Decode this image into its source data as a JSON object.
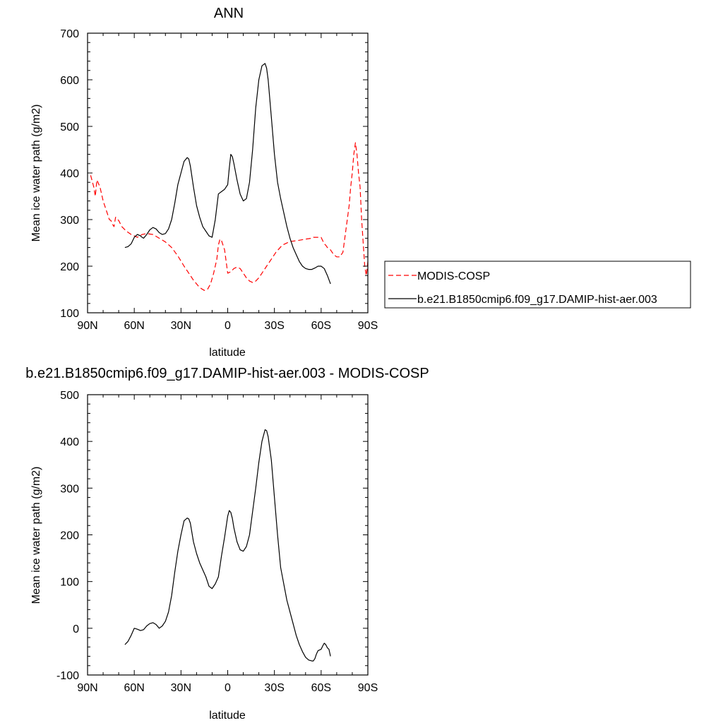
{
  "chart_data": [
    {
      "type": "line",
      "title": "ANN",
      "xlabel": "latitude",
      "ylabel": "Mean ice water path (g/m2)",
      "xlim": [
        90,
        -90
      ],
      "ylim": [
        100,
        700
      ],
      "x_ticks": [
        {
          "value": 90,
          "label": "90N"
        },
        {
          "value": 60,
          "label": "60N"
        },
        {
          "value": 30,
          "label": "30N"
        },
        {
          "value": 0,
          "label": "0"
        },
        {
          "value": -30,
          "label": "30S"
        },
        {
          "value": -60,
          "label": "60S"
        },
        {
          "value": -90,
          "label": "90S"
        }
      ],
      "y_ticks": [
        100,
        200,
        300,
        400,
        500,
        600,
        700
      ],
      "grid": false,
      "legend": "right",
      "series": [
        {
          "name": "MODIS-COSP",
          "color": "#ff0000",
          "dash": "dashed",
          "x": [
            88,
            86,
            85,
            84,
            82,
            80,
            78,
            76,
            75,
            74,
            73,
            72,
            70,
            68,
            65,
            62,
            58,
            55,
            52,
            48,
            44,
            40,
            36,
            32,
            28,
            25,
            22,
            19,
            17,
            15,
            13,
            11,
            9,
            7,
            6,
            5,
            4,
            2,
            1,
            0,
            -2,
            -4,
            -6,
            -8,
            -10,
            -12,
            -14,
            -16,
            -18,
            -20,
            -22,
            -25,
            -28,
            -31,
            -35,
            -40,
            -45,
            -50,
            -54,
            -55,
            -57,
            -58,
            -60,
            -61,
            -62,
            -63,
            -64,
            -66,
            -68,
            -70,
            -72,
            -74,
            -76,
            -78,
            -79,
            -80,
            -81,
            -82,
            -83,
            -84,
            -85,
            -86,
            -87,
            -88,
            -89,
            -90
          ],
          "y": [
            395,
            370,
            350,
            385,
            370,
            340,
            320,
            300,
            298,
            290,
            285,
            305,
            298,
            285,
            275,
            268,
            262,
            268,
            270,
            268,
            260,
            252,
            240,
            222,
            200,
            185,
            170,
            158,
            152,
            148,
            150,
            162,
            185,
            215,
            245,
            258,
            255,
            235,
            210,
            185,
            188,
            195,
            198,
            195,
            185,
            175,
            168,
            165,
            168,
            175,
            185,
            200,
            215,
            230,
            245,
            253,
            255,
            258,
            260,
            262,
            262,
            262,
            262,
            255,
            248,
            245,
            240,
            235,
            225,
            220,
            220,
            230,
            280,
            330,
            370,
            400,
            440,
            465,
            440,
            400,
            370,
            300,
            250,
            200,
            180,
            210
          ]
        },
        {
          "name": "b.e21.B1850cmip6.f09_g17.DAMIP-hist-aer.003",
          "color": "#000000",
          "dash": "solid",
          "x": [
            66,
            64,
            62,
            60,
            58,
            56,
            55,
            54,
            52,
            50,
            48,
            46,
            44,
            42,
            40,
            38,
            36,
            34,
            32,
            30,
            28,
            26,
            25,
            24,
            22,
            20,
            18,
            16,
            14,
            12,
            10,
            8,
            6,
            4,
            2,
            0,
            -1,
            -2,
            -3,
            -4,
            -6,
            -8,
            -10,
            -12,
            -14,
            -16,
            -18,
            -20,
            -22,
            -24,
            -25,
            -26,
            -28,
            -30,
            -32,
            -34,
            -36,
            -38,
            -40,
            -42,
            -44,
            -46,
            -48,
            -50,
            -52,
            -54,
            -56,
            -58,
            -60,
            -62,
            -64,
            -66
          ],
          "y": [
            240,
            242,
            248,
            262,
            268,
            265,
            262,
            260,
            268,
            278,
            283,
            280,
            272,
            268,
            270,
            280,
            300,
            335,
            375,
            400,
            425,
            433,
            430,
            415,
            370,
            330,
            305,
            285,
            275,
            265,
            262,
            300,
            355,
            360,
            365,
            375,
            410,
            440,
            435,
            420,
            385,
            355,
            340,
            345,
            380,
            450,
            540,
            600,
            630,
            635,
            625,
            600,
            520,
            440,
            380,
            345,
            315,
            285,
            260,
            240,
            225,
            210,
            200,
            195,
            193,
            193,
            196,
            200,
            200,
            195,
            180,
            162
          ]
        }
      ]
    },
    {
      "type": "line",
      "title": "b.e21.B1850cmip6.f09_g17.DAMIP-hist-aer.003 - MODIS-COSP",
      "xlabel": "latitude",
      "ylabel": "Mean ice water path (g/m2)",
      "xlim": [
        90,
        -90
      ],
      "ylim": [
        -100,
        500
      ],
      "x_ticks": [
        {
          "value": 90,
          "label": "90N"
        },
        {
          "value": 60,
          "label": "60N"
        },
        {
          "value": 30,
          "label": "30N"
        },
        {
          "value": 0,
          "label": "0"
        },
        {
          "value": -30,
          "label": "30S"
        },
        {
          "value": -60,
          "label": "60S"
        },
        {
          "value": -90,
          "label": "90S"
        }
      ],
      "y_ticks": [
        -100,
        0,
        100,
        200,
        300,
        400,
        500
      ],
      "grid": false,
      "series": [
        {
          "color": "#000000",
          "dash": "solid",
          "x": [
            66,
            64,
            62,
            60,
            58,
            56,
            54,
            52,
            50,
            48,
            46,
            44,
            42,
            40,
            38,
            36,
            34,
            32,
            30,
            28,
            26,
            25,
            24,
            22,
            20,
            18,
            16,
            14,
            12,
            10,
            8,
            6,
            4,
            2,
            0,
            -1,
            -2,
            -3,
            -4,
            -6,
            -8,
            -10,
            -12,
            -14,
            -16,
            -18,
            -20,
            -22,
            -24,
            -25,
            -26,
            -28,
            -30,
            -32,
            -34,
            -36,
            -38,
            -40,
            -42,
            -44,
            -46,
            -48,
            -50,
            -52,
            -54,
            -55,
            -56,
            -57,
            -58,
            -60,
            -61,
            -62,
            -63,
            -64,
            -65,
            -66
          ],
          "y": [
            -35,
            -28,
            -15,
            0,
            -2,
            -5,
            -3,
            5,
            10,
            12,
            8,
            0,
            5,
            15,
            35,
            70,
            120,
            165,
            200,
            230,
            236,
            234,
            225,
            185,
            160,
            140,
            125,
            110,
            90,
            85,
            95,
            110,
            155,
            195,
            240,
            252,
            248,
            235,
            215,
            185,
            168,
            165,
            175,
            200,
            250,
            300,
            355,
            400,
            425,
            423,
            410,
            360,
            280,
            200,
            130,
            95,
            60,
            35,
            10,
            -15,
            -35,
            -50,
            -62,
            -68,
            -70,
            -70,
            -65,
            -55,
            -48,
            -45,
            -38,
            -32,
            -35,
            -42,
            -45,
            -60
          ]
        }
      ]
    }
  ]
}
